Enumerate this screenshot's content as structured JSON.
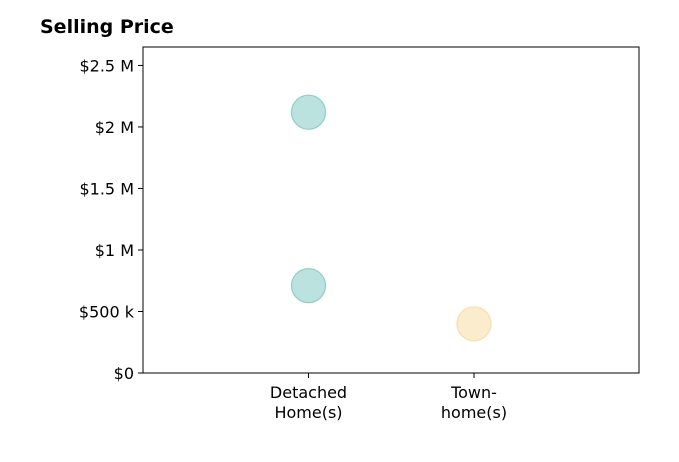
{
  "chart_data": {
    "type": "scatter",
    "title": "Selling Price",
    "xlabel": "",
    "ylabel": "",
    "categories": [
      {
        "lines": [
          "Detached",
          "Home(s)"
        ],
        "color": "#8ecfc8"
      },
      {
        "lines": [
          "Town-",
          "home(s)"
        ],
        "color": "#f6dfaa"
      }
    ],
    "points": [
      {
        "category": 0,
        "value": 2120000
      },
      {
        "category": 0,
        "value": 710000
      },
      {
        "category": 1,
        "value": 400000
      }
    ],
    "ylim": [
      0,
      2650000
    ],
    "yticks": [
      {
        "value": 0,
        "label": "$0"
      },
      {
        "value": 500000,
        "label": "$500 k"
      },
      {
        "value": 1000000,
        "label": "$1 M"
      },
      {
        "value": 1500000,
        "label": "$1.5 M"
      },
      {
        "value": 2000000,
        "label": "$2 M"
      },
      {
        "value": 2500000,
        "label": "$2.5 M"
      }
    ],
    "grid": false,
    "legend": "none"
  }
}
